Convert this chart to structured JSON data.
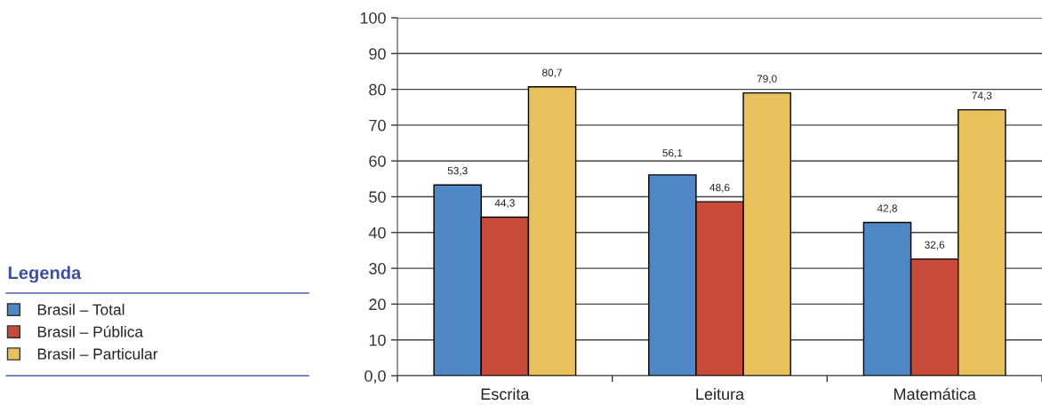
{
  "chart_data": {
    "type": "bar",
    "categories": [
      "Escrita",
      "Leitura",
      "Matemática"
    ],
    "series": [
      {
        "name": "Brasil – Total",
        "color": "#4f87c7",
        "values": [
          53.3,
          56.1,
          42.8
        ],
        "value_labels": [
          "53,3",
          "56,1",
          "42,8"
        ]
      },
      {
        "name": "Brasil – Pública",
        "color": "#c84b3a",
        "values": [
          44.3,
          48.6,
          32.6
        ],
        "value_labels": [
          "44,3",
          "48,6",
          "32,6"
        ]
      },
      {
        "name": "Brasil – Particular",
        "color": "#e8c15d",
        "values": [
          80.7,
          79.0,
          74.3
        ],
        "value_labels": [
          "80,7",
          "79,0",
          "74,3"
        ]
      }
    ],
    "ylim": [
      0,
      100
    ],
    "yticks": [
      {
        "value": 0,
        "label": "0,0"
      },
      10,
      20,
      30,
      40,
      50,
      60,
      70,
      80,
      90,
      100
    ],
    "grid": "y",
    "legend": "left",
    "legend_title": "Legenda"
  }
}
